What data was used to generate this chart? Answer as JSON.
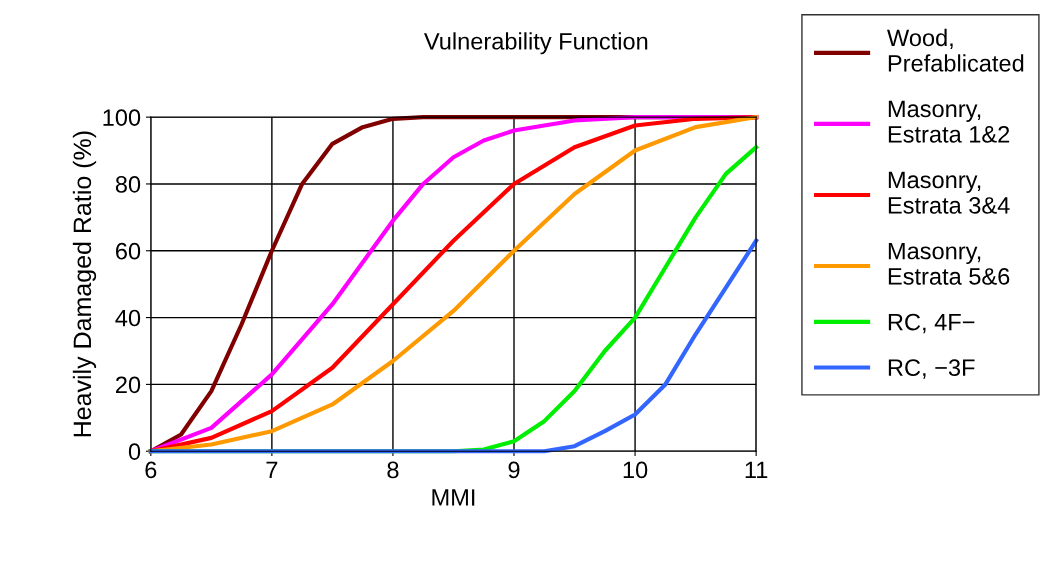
{
  "chart_data": {
    "type": "line",
    "title": "Vulnerability Function",
    "xlabel": "MMI",
    "ylabel": "Heavily Damaged Ratio (%)",
    "xlim": [
      6,
      11
    ],
    "xticks": [
      6,
      7,
      8,
      9,
      10,
      11
    ],
    "ylim": [
      0,
      100
    ],
    "yticks": [
      0,
      20,
      40,
      60,
      80,
      100
    ],
    "grid": true,
    "legend": "right",
    "marker": "none",
    "line_style": "solid",
    "series": [
      {
        "name": "Wood,\nPrefablicated",
        "color": "#800000",
        "x": [
          6,
          6.25,
          6.5,
          6.75,
          7,
          7.25,
          7.5,
          7.75,
          8,
          8.25,
          9,
          10,
          11
        ],
        "values": [
          0,
          5,
          18,
          38,
          60,
          80,
          92,
          97,
          99.5,
          100,
          100,
          100,
          100
        ]
      },
      {
        "name": "Masonry,\nEstrata 1&2",
        "color": "#ff00ff",
        "x": [
          6,
          6.5,
          7,
          7.5,
          8,
          8.25,
          8.5,
          8.75,
          9,
          9.5,
          10,
          11
        ],
        "values": [
          0,
          7,
          23,
          44,
          69,
          80,
          88,
          93,
          96,
          99,
          100,
          100
        ]
      },
      {
        "name": "Masonry,\nEstrata 3&4",
        "color": "#ff0000",
        "x": [
          6,
          6.5,
          7,
          7.5,
          8,
          8.5,
          9,
          9.5,
          10,
          10.5,
          11
        ],
        "values": [
          0,
          4,
          12,
          25,
          44,
          63,
          80,
          91,
          97.5,
          99.5,
          100
        ]
      },
      {
        "name": "Masonry,\nEstrata 5&6",
        "color": "#ff9900",
        "x": [
          6,
          6.5,
          7,
          7.5,
          8,
          8.5,
          9,
          9.5,
          10,
          10.5,
          11
        ],
        "values": [
          0,
          2,
          6,
          14,
          27,
          42,
          60,
          77,
          90,
          97,
          100
        ]
      },
      {
        "name": "RC, 4F−",
        "color": "#00ee00",
        "x": [
          6,
          8.5,
          8.75,
          9,
          9.25,
          9.5,
          9.75,
          10,
          10.25,
          10.5,
          10.75,
          11
        ],
        "values": [
          0,
          0,
          0.5,
          3,
          9,
          18,
          30,
          40,
          55,
          70,
          83,
          91
        ]
      },
      {
        "name": "RC, −3F",
        "color": "#3366ff",
        "x": [
          6,
          9.25,
          9.5,
          9.75,
          10,
          10.25,
          10.5,
          10.75,
          11
        ],
        "values": [
          0,
          0,
          1.5,
          6,
          11,
          20,
          35,
          49,
          63
        ]
      }
    ]
  }
}
